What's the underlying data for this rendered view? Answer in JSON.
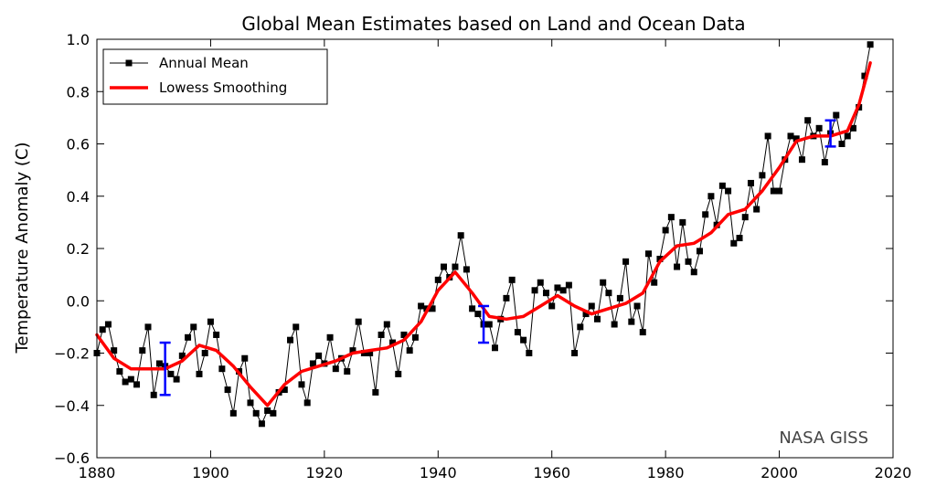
{
  "chart_data": {
    "type": "line",
    "title": "Global Mean Estimates based on Land and Ocean Data",
    "xlabel": "",
    "ylabel": "Temperature Anomaly (C)",
    "xlim": [
      1880,
      2020
    ],
    "ylim": [
      -0.6,
      1.0
    ],
    "xticks": [
      1880,
      1900,
      1920,
      1940,
      1960,
      1980,
      2000,
      2020
    ],
    "yticks": [
      -0.6,
      -0.4,
      -0.2,
      0.0,
      0.2,
      0.4,
      0.6,
      0.8,
      1.0
    ],
    "grid": false,
    "legend_position": "top-left",
    "watermark": "NASA GISS",
    "series": [
      {
        "name": "Annual Mean",
        "style": "black line with square markers",
        "color": "#000000",
        "x": [
          1880,
          1881,
          1882,
          1883,
          1884,
          1885,
          1886,
          1887,
          1888,
          1889,
          1890,
          1891,
          1892,
          1893,
          1894,
          1895,
          1896,
          1897,
          1898,
          1899,
          1900,
          1901,
          1902,
          1903,
          1904,
          1905,
          1906,
          1907,
          1908,
          1909,
          1910,
          1911,
          1912,
          1913,
          1914,
          1915,
          1916,
          1917,
          1918,
          1919,
          1920,
          1921,
          1922,
          1923,
          1924,
          1925,
          1926,
          1927,
          1928,
          1929,
          1930,
          1931,
          1932,
          1933,
          1934,
          1935,
          1936,
          1937,
          1938,
          1939,
          1940,
          1941,
          1942,
          1943,
          1944,
          1945,
          1946,
          1947,
          1948,
          1949,
          1950,
          1951,
          1952,
          1953,
          1954,
          1955,
          1956,
          1957,
          1958,
          1959,
          1960,
          1961,
          1962,
          1963,
          1964,
          1965,
          1966,
          1967,
          1968,
          1969,
          1970,
          1971,
          1972,
          1973,
          1974,
          1975,
          1976,
          1977,
          1978,
          1979,
          1980,
          1981,
          1982,
          1983,
          1984,
          1985,
          1986,
          1987,
          1988,
          1989,
          1990,
          1991,
          1992,
          1993,
          1994,
          1995,
          1996,
          1997,
          1998,
          1999,
          2000,
          2001,
          2002,
          2003,
          2004,
          2005,
          2006,
          2007,
          2008,
          2009,
          2010,
          2011,
          2012,
          2013,
          2014,
          2015,
          2016
        ],
        "values": [
          -0.2,
          -0.11,
          -0.09,
          -0.19,
          -0.27,
          -0.31,
          -0.3,
          -0.32,
          -0.19,
          -0.1,
          -0.36,
          -0.24,
          -0.25,
          -0.28,
          -0.3,
          -0.21,
          -0.14,
          -0.1,
          -0.28,
          -0.2,
          -0.08,
          -0.13,
          -0.26,
          -0.34,
          -0.43,
          -0.27,
          -0.22,
          -0.39,
          -0.43,
          -0.47,
          -0.42,
          -0.43,
          -0.35,
          -0.34,
          -0.15,
          -0.1,
          -0.32,
          -0.39,
          -0.24,
          -0.21,
          -0.24,
          -0.14,
          -0.26,
          -0.22,
          -0.27,
          -0.19,
          -0.08,
          -0.2,
          -0.2,
          -0.35,
          -0.13,
          -0.09,
          -0.16,
          -0.28,
          -0.13,
          -0.19,
          -0.14,
          -0.02,
          -0.03,
          -0.03,
          0.08,
          0.13,
          0.09,
          0.13,
          0.25,
          0.12,
          -0.03,
          -0.05,
          -0.09,
          -0.09,
          -0.18,
          -0.07,
          0.01,
          0.08,
          -0.12,
          -0.15,
          -0.2,
          0.04,
          0.07,
          0.03,
          -0.02,
          0.05,
          0.04,
          0.06,
          -0.2,
          -0.1,
          -0.05,
          -0.02,
          -0.07,
          0.07,
          0.03,
          -0.09,
          0.01,
          0.15,
          -0.08,
          -0.02,
          -0.12,
          0.18,
          0.07,
          0.16,
          0.27,
          0.32,
          0.13,
          0.3,
          0.15,
          0.11,
          0.19,
          0.33,
          0.4,
          0.29,
          0.44,
          0.42,
          0.22,
          0.24,
          0.32,
          0.45,
          0.35,
          0.48,
          0.63,
          0.42,
          0.42,
          0.54,
          0.63,
          0.62,
          0.54,
          0.69,
          0.63,
          0.66,
          0.53,
          0.64,
          0.71,
          0.6,
          0.63,
          0.66,
          0.74,
          0.86,
          0.98
        ]
      },
      {
        "name": "Lowess Smoothing",
        "style": "thick red line",
        "color": "#ff0000",
        "x": [
          1880,
          1883,
          1886,
          1889,
          1892,
          1895,
          1898,
          1901,
          1904,
          1907,
          1910,
          1913,
          1916,
          1919,
          1922,
          1925,
          1928,
          1931,
          1934,
          1937,
          1940,
          1943,
          1946,
          1949,
          1952,
          1955,
          1958,
          1961,
          1964,
          1967,
          1970,
          1973,
          1976,
          1979,
          1982,
          1985,
          1988,
          1991,
          1994,
          1997,
          2000,
          2003,
          2006,
          2009,
          2012,
          2014,
          2016
        ],
        "values": [
          -0.13,
          -0.22,
          -0.26,
          -0.26,
          -0.26,
          -0.23,
          -0.17,
          -0.19,
          -0.25,
          -0.33,
          -0.4,
          -0.32,
          -0.27,
          -0.25,
          -0.23,
          -0.2,
          -0.19,
          -0.18,
          -0.15,
          -0.08,
          0.04,
          0.11,
          0.03,
          -0.06,
          -0.07,
          -0.06,
          -0.02,
          0.02,
          -0.02,
          -0.05,
          -0.03,
          -0.01,
          0.03,
          0.15,
          0.21,
          0.22,
          0.26,
          0.33,
          0.35,
          0.42,
          0.51,
          0.61,
          0.63,
          0.63,
          0.65,
          0.75,
          0.91
        ]
      }
    ],
    "error_bars": [
      {
        "x": 1892,
        "low": -0.36,
        "high": -0.16,
        "color": "#0000ff"
      },
      {
        "x": 1948,
        "low": -0.16,
        "high": -0.02,
        "color": "#0000ff"
      },
      {
        "x": 2009,
        "low": 0.59,
        "high": 0.69,
        "color": "#0000ff"
      }
    ]
  }
}
